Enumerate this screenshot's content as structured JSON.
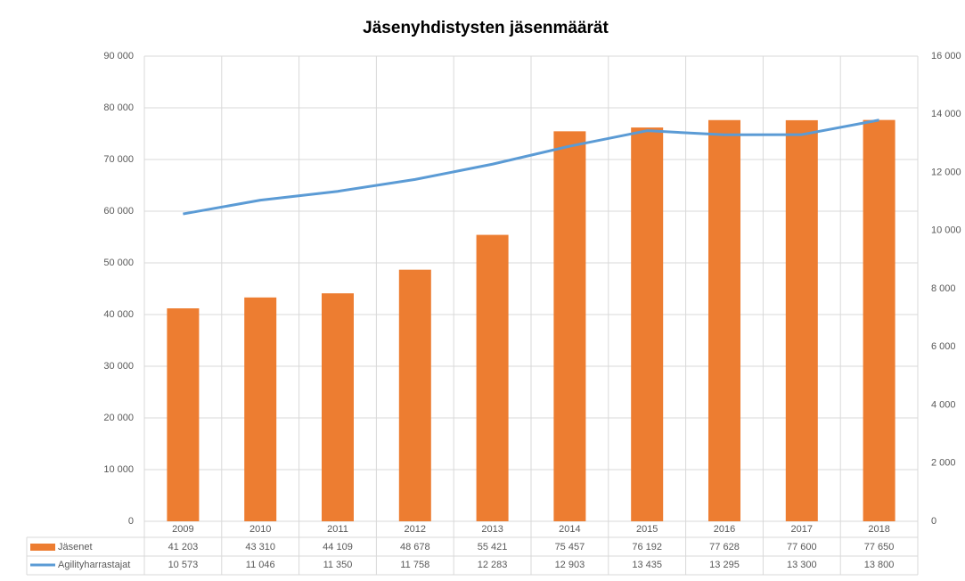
{
  "chart_data": {
    "type": "bar-line",
    "title": "Jäsenyhdistysten jäsenmäärät",
    "categories": [
      "2009",
      "2010",
      "2011",
      "2012",
      "2013",
      "2014",
      "2015",
      "2016",
      "2017",
      "2018"
    ],
    "series": [
      {
        "name": "Jäsenet",
        "type": "bar",
        "color": "#ed7d31",
        "axis": "y",
        "values": [
          41203,
          43310,
          44109,
          48678,
          55421,
          75457,
          76192,
          77628,
          77600,
          77650
        ],
        "value_labels": [
          "41 203",
          "43 310",
          "44 109",
          "48 678",
          "55 421",
          "75 457",
          "76 192",
          "77 628",
          "77 600",
          "77 650"
        ]
      },
      {
        "name": "Agilityharrastajat",
        "type": "line",
        "color": "#5b9bd5",
        "axis": "y2",
        "values": [
          10573,
          11046,
          11350,
          11758,
          12283,
          12903,
          13435,
          13295,
          13300,
          13800
        ],
        "value_labels": [
          "10 573",
          "11 046",
          "11 350",
          "11 758",
          "12 283",
          "12 903",
          "13 435",
          "13 295",
          "13 300",
          "13 800"
        ]
      }
    ],
    "ylim": [
      0,
      90000
    ],
    "yticks": [
      0,
      {
        "value": 10000,
        "label": "10 000"
      },
      {
        "value": 20000,
        "label": "20 000"
      },
      {
        "value": 30000,
        "label": "30 000"
      },
      {
        "value": 40000,
        "label": "40 000"
      },
      {
        "value": 50000,
        "label": "50 000"
      },
      {
        "value": 60000,
        "label": "60 000"
      },
      {
        "value": 70000,
        "label": "70 000"
      },
      {
        "value": 80000,
        "label": "80 000"
      },
      {
        "value": 90000,
        "label": "90 000"
      }
    ],
    "y2lim": [
      0,
      16000
    ],
    "y2ticks": [
      0,
      {
        "value": 2000,
        "label": "2 000"
      },
      {
        "value": 4000,
        "label": "4 000"
      },
      {
        "value": 6000,
        "label": "6 000"
      },
      {
        "value": 8000,
        "label": "8 000"
      },
      {
        "value": 10000,
        "label": "10 000"
      },
      {
        "value": 12000,
        "label": "12 000"
      },
      {
        "value": 14000,
        "label": "14 000"
      },
      {
        "value": 16000,
        "label": "16 000"
      }
    ],
    "grid": true
  }
}
